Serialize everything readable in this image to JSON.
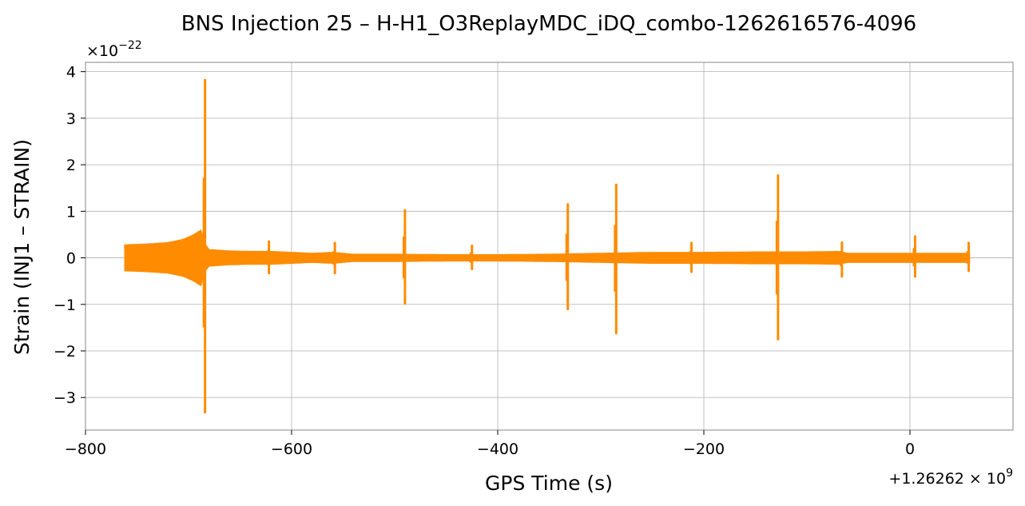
{
  "chart_data": {
    "type": "line",
    "title": "BNS Injection 25 – H-H1_O3ReplayMDC_iDQ_combo-1262616576-4096",
    "xlabel": "GPS Time (s)",
    "ylabel": "Strain (INJ1 – STRAIN)",
    "x_offset_label": "+1.26262×10^9",
    "y_scale_label": "×10^-22",
    "xlim": [
      -800,
      100
    ],
    "ylim": [
      -3.7,
      4.2
    ],
    "xticks": [
      -800,
      -600,
      -400,
      -200,
      0
    ],
    "xtick_labels": [
      "−800",
      "−600",
      "−400",
      "−200",
      "0"
    ],
    "yticks": [
      -3,
      -2,
      -1,
      0,
      1,
      2,
      3,
      4
    ],
    "ytick_labels": [
      "−3",
      "−2",
      "−1",
      "0",
      "1",
      "2",
      "3",
      "4"
    ],
    "grid": true,
    "series_color": "#ff8c00",
    "signal_span": [
      -762,
      58
    ],
    "envelope": [
      [
        -762,
        0.28
      ],
      [
        -740,
        0.3
      ],
      [
        -720,
        0.33
      ],
      [
        -705,
        0.4
      ],
      [
        -695,
        0.5
      ],
      [
        -688,
        0.6
      ],
      [
        -684,
        0.3
      ],
      [
        -680,
        0.18
      ],
      [
        -660,
        0.15
      ],
      [
        -640,
        0.14
      ],
      [
        -620,
        0.14
      ],
      [
        -600,
        0.12
      ],
      [
        -580,
        0.1
      ],
      [
        -560,
        0.12
      ],
      [
        -540,
        0.08
      ],
      [
        -500,
        0.08
      ],
      [
        -450,
        0.07
      ],
      [
        -400,
        0.07
      ],
      [
        -350,
        0.08
      ],
      [
        -300,
        0.1
      ],
      [
        -250,
        0.12
      ],
      [
        -200,
        0.12
      ],
      [
        -150,
        0.13
      ],
      [
        -100,
        0.13
      ],
      [
        -70,
        0.14
      ],
      [
        -60,
        0.1
      ],
      [
        0,
        0.1
      ],
      [
        30,
        0.1
      ],
      [
        58,
        0.1
      ]
    ],
    "spikes": [
      {
        "x": -684,
        "max": 3.82,
        "min": -3.32
      },
      {
        "x": -622,
        "max": 0.35,
        "min": -0.33
      },
      {
        "x": -558,
        "max": 0.32,
        "min": -0.33
      },
      {
        "x": -490,
        "max": 1.02,
        "min": -0.98
      },
      {
        "x": -425,
        "max": 0.26,
        "min": -0.24
      },
      {
        "x": -332,
        "max": 1.15,
        "min": -1.1
      },
      {
        "x": -285,
        "max": 1.57,
        "min": -1.62
      },
      {
        "x": -212,
        "max": 0.32,
        "min": -0.3
      },
      {
        "x": -128,
        "max": 1.77,
        "min": -1.75
      },
      {
        "x": -66,
        "max": 0.33,
        "min": -0.4
      },
      {
        "x": 5,
        "max": 0.46,
        "min": -0.4
      },
      {
        "x": 57,
        "max": 0.32,
        "min": -0.28
      }
    ]
  }
}
